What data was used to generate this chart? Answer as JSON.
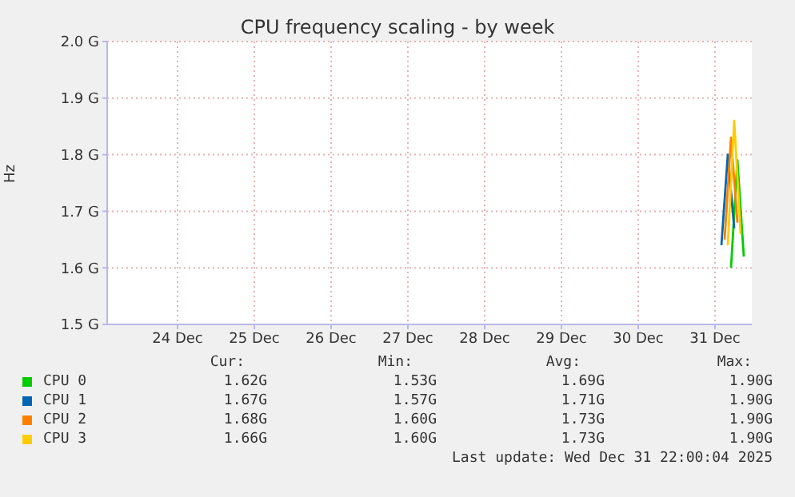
{
  "chart_data": {
    "type": "line",
    "title": "CPU frequency scaling - by week",
    "ylabel": "Hz",
    "xlim": [
      "2025-12-23T14:00",
      "2025-12-31T23:30"
    ],
    "xticks": [
      {
        "value": "2025-12-24T12:00",
        "label": "24 Dec"
      },
      {
        "value": "2025-12-25T12:00",
        "label": "25 Dec"
      },
      {
        "value": "2025-12-26T12:00",
        "label": "26 Dec"
      },
      {
        "value": "2025-12-27T12:00",
        "label": "27 Dec"
      },
      {
        "value": "2025-12-28T12:00",
        "label": "28 Dec"
      },
      {
        "value": "2025-12-29T12:00",
        "label": "29 Dec"
      },
      {
        "value": "2025-12-30T12:00",
        "label": "30 Dec"
      },
      {
        "value": "2025-12-31T12:00",
        "label": "31 Dec"
      }
    ],
    "ylim": [
      1.5,
      2.0
    ],
    "yticks": [
      {
        "value": 1.5,
        "label": "1.5 G"
      },
      {
        "value": 1.6,
        "label": "1.6 G"
      },
      {
        "value": 1.7,
        "label": "1.7 G"
      },
      {
        "value": 1.8,
        "label": "1.8 G"
      },
      {
        "value": 1.9,
        "label": "1.9 G"
      },
      {
        "value": 2.0,
        "label": "2.0 G"
      }
    ],
    "series": [
      {
        "name": "CPU 0",
        "color": "#00cc00",
        "x": [
          "2025-12-31T17:00",
          "2025-12-31T19:00",
          "2025-12-31T21:00"
        ],
        "values": [
          1.6,
          1.79,
          1.62
        ]
      },
      {
        "name": "CPU 1",
        "color": "#0066b3",
        "x": [
          "2025-12-31T14:00",
          "2025-12-31T16:00",
          "2025-12-31T18:00"
        ],
        "values": [
          1.64,
          1.8,
          1.67
        ]
      },
      {
        "name": "CPU 2",
        "color": "#ff8000",
        "x": [
          "2025-12-31T15:00",
          "2025-12-31T17:00",
          "2025-12-31T19:00"
        ],
        "values": [
          1.65,
          1.83,
          1.68
        ]
      },
      {
        "name": "CPU 3",
        "color": "#ffcc00",
        "x": [
          "2025-12-31T16:00",
          "2025-12-31T18:00",
          "2025-12-31T20:00"
        ],
        "values": [
          1.64,
          1.86,
          1.66
        ]
      }
    ],
    "grid": true,
    "legend": "bottom",
    "marker": "none",
    "line_style": "solid",
    "annotations": [
      "Cur:",
      "Min:",
      "Avg:",
      "Max:",
      "1.62G",
      "1.53G",
      "1.69G",
      "1.90G",
      "1.67G",
      "1.57G",
      "1.71G",
      "1.90G",
      "1.68G",
      "1.60G",
      "1.73G",
      "1.90G",
      "1.66G",
      "1.60G",
      "1.73G",
      "1.90G",
      "Last update: Wed Dec 31 22:00:04 2025"
    ]
  }
}
